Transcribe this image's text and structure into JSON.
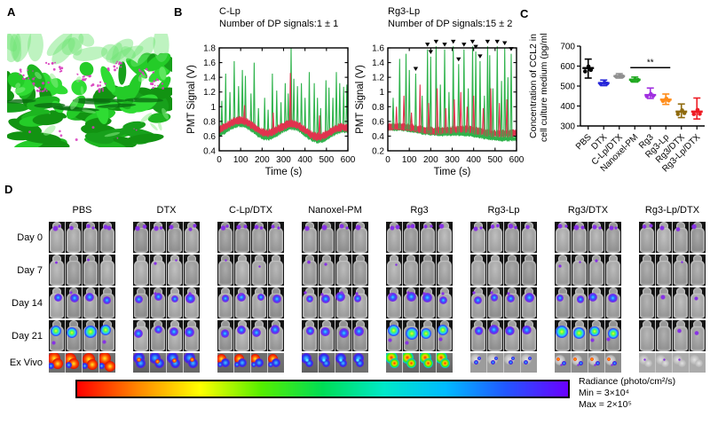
{
  "figure": {
    "panel_labels": {
      "a": "A",
      "b": "B",
      "c": "C",
      "d": "D"
    }
  },
  "chart_data": [
    {
      "id": "pmt-c-lp",
      "type": "line",
      "title": "C-Lp",
      "subtitle": "Number of DP signals:1 ± 1",
      "xlabel": "Time (s)",
      "ylabel": "PMT Signal (V)",
      "xlim": [
        0,
        600
      ],
      "xticks": [
        0,
        100,
        200,
        300,
        400,
        500,
        600
      ],
      "ylim": [
        0.4,
        1.8
      ],
      "yticks": [
        0.4,
        0.6,
        0.8,
        1,
        1.2,
        1.4,
        1.6,
        1.8
      ],
      "series": [
        {
          "name": "green-channel",
          "color": "#2eb34b",
          "baseline": {
            "start": 0.7,
            "end": 0.6,
            "wave": 0.08,
            "period": 240,
            "phase": 100,
            "thickness": 0.1
          },
          "spikes": [
            [
              12,
              1.08
            ],
            [
              30,
              1.45
            ],
            [
              50,
              1.2
            ],
            [
              70,
              1.62
            ],
            [
              90,
              1.28
            ],
            [
              108,
              1.5
            ],
            [
              122,
              1.42
            ],
            [
              148,
              1.18
            ],
            [
              163,
              1.6
            ],
            [
              183,
              0.98
            ],
            [
              212,
              1.12
            ],
            [
              228,
              0.96
            ],
            [
              248,
              1.45
            ],
            [
              268,
              1.22
            ],
            [
              288,
              1.06
            ],
            [
              308,
              1.32
            ],
            [
              322,
              1.18
            ],
            [
              335,
              1.8
            ],
            [
              348,
              1.38
            ],
            [
              365,
              1.28
            ],
            [
              383,
              1.32
            ],
            [
              400,
              1.12
            ],
            [
              420,
              1.47
            ],
            [
              443,
              1.32
            ],
            [
              458,
              1.12
            ],
            [
              473,
              0.98
            ],
            [
              498,
              1.36
            ],
            [
              512,
              1.26
            ],
            [
              530,
              1.12
            ],
            [
              546,
              1.47
            ],
            [
              562,
              1.32
            ],
            [
              580,
              1.27
            ],
            [
              595,
              1.3
            ]
          ]
        },
        {
          "name": "red-channel",
          "color": "#e1334e",
          "baseline": {
            "start": 0.76,
            "end": 0.64,
            "wave": 0.075,
            "period": 240,
            "phase": 100,
            "thickness": 0.13
          },
          "spikes": [
            [
              118,
              1.02
            ],
            [
              252,
              0.92
            ],
            [
              332,
              1.46
            ],
            [
              468,
              0.88
            ]
          ]
        }
      ],
      "dp_signal_markers": []
    },
    {
      "id": "pmt-rg3-lp",
      "type": "line",
      "title": "Rg3-Lp",
      "subtitle": "Number of DP signals:15 ± 2",
      "xlabel": "Time (s)",
      "ylabel": "PMT Signal (V)",
      "xlim": [
        0,
        600
      ],
      "xticks": [
        0,
        100,
        200,
        300,
        400,
        500,
        600
      ],
      "ylim": [
        0.2,
        1.6
      ],
      "yticks": [
        0.2,
        0.4,
        0.6,
        0.8,
        1,
        1.2,
        1.4,
        1.6
      ],
      "series": [
        {
          "name": "green-channel",
          "color": "#2eb34b",
          "baseline": {
            "start": 0.5,
            "end": 0.36,
            "wave": 0.015,
            "period": 300,
            "phase": 60,
            "thickness": 0.08
          },
          "spikes": [
            [
              25,
              0.92
            ],
            [
              55,
              1.45
            ],
            [
              85,
              1.52
            ],
            [
              100,
              1.3
            ],
            [
              130,
              1.25
            ],
            [
              160,
              0.95
            ],
            [
              185,
              1.58
            ],
            [
              200,
              1.48
            ],
            [
              225,
              1.62
            ],
            [
              245,
              1.1
            ],
            [
              265,
              1.58
            ],
            [
              285,
              1.0
            ],
            [
              305,
              1.62
            ],
            [
              330,
              1.38
            ],
            [
              355,
              1.58
            ],
            [
              375,
              1.05
            ],
            [
              395,
              1.62
            ],
            [
              410,
              1.55
            ],
            [
              430,
              1.42
            ],
            [
              450,
              0.95
            ],
            [
              465,
              1.62
            ],
            [
              475,
              1.5
            ],
            [
              490,
              1.05
            ],
            [
              510,
              1.62
            ],
            [
              530,
              1.15
            ],
            [
              545,
              1.6
            ],
            [
              560,
              1.2
            ],
            [
              575,
              1.52
            ]
          ]
        },
        {
          "name": "red-channel",
          "color": "#e1334e",
          "baseline": {
            "start": 0.52,
            "end": 0.44,
            "wave": 0.02,
            "period": 300,
            "phase": 60,
            "thickness": 0.12
          },
          "spikes": [
            [
              40,
              0.8
            ],
            [
              75,
              0.95
            ],
            [
              110,
              0.72
            ],
            [
              150,
              1.1
            ],
            [
              190,
              0.85
            ],
            [
              230,
              1.05
            ],
            [
              270,
              0.78
            ],
            [
              310,
              0.9
            ],
            [
              340,
              1.0
            ],
            [
              370,
              0.8
            ],
            [
              400,
              0.95
            ],
            [
              445,
              0.78
            ],
            [
              480,
              1.05
            ],
            [
              520,
              0.85
            ],
            [
              555,
              0.9
            ]
          ]
        }
      ],
      "dp_signal_markers": [
        [
          130,
          1.25
        ],
        [
          185,
          1.58
        ],
        [
          200,
          1.48
        ],
        [
          225,
          1.62
        ],
        [
          265,
          1.58
        ],
        [
          305,
          1.62
        ],
        [
          330,
          1.38
        ],
        [
          355,
          1.58
        ],
        [
          395,
          1.62
        ],
        [
          410,
          1.55
        ],
        [
          430,
          1.42
        ],
        [
          465,
          1.62
        ],
        [
          510,
          1.62
        ],
        [
          545,
          1.6
        ],
        [
          575,
          1.52
        ]
      ]
    },
    {
      "id": "ccl2",
      "type": "scatter",
      "ylabel_lines": [
        "Concentration of CCL2 in",
        "cell culture medium (pg/ml)"
      ],
      "ylim": [
        300,
        700
      ],
      "yticks": [
        300,
        400,
        500,
        600,
        700
      ],
      "categories": [
        "PBS",
        "DTX",
        "C-Lp/DTX",
        "Nanoxel-PM",
        "Rg3",
        "Rg3-Lp",
        "Rg3/DTX",
        "Rg3-Lp/DTX"
      ],
      "means": [
        590,
        515,
        550,
        532,
        455,
        432,
        372,
        372
      ],
      "err_low": [
        540,
        502,
        540,
        520,
        438,
        408,
        342,
        335
      ],
      "err_high": [
        635,
        530,
        562,
        545,
        490,
        460,
        410,
        440
      ],
      "colors": [
        "#000000",
        "#2626d9",
        "#8f8f8f",
        "#1fa81f",
        "#a02fe0",
        "#ff8c19",
        "#8f6b0f",
        "#ee1c24"
      ],
      "significance": {
        "label": "**",
        "from_index": 3,
        "to_index": 5,
        "y_value": 592
      }
    }
  ],
  "panel_a": {
    "description": "3D intravital two-photon render: green tumor vasculature surface with magenta liposome signals",
    "green_palette": [
      "#1db520",
      "#24cc28",
      "#17a01b",
      "#2fdc33",
      "#129312"
    ],
    "top_haze_color": "#6fe473",
    "crevice_color": "#0b6e12",
    "highlight_color": "#8ef08a",
    "magenta": "#d83bbd"
  },
  "panel_d": {
    "row_labels": [
      "Day 0",
      "Day 7",
      "Day 14",
      "Day 21",
      "Ex Vivo"
    ],
    "mice_per_group": 4,
    "groups": [
      {
        "name": "PBS",
        "day_levels": [
          2,
          1,
          2,
          3
        ],
        "exvivo": "hot-red"
      },
      {
        "name": "DTX",
        "day_levels": [
          2,
          1,
          2,
          2
        ],
        "exvivo": "blue-red"
      },
      {
        "name": "C-Lp/DTX",
        "day_levels": [
          2,
          0,
          2,
          2
        ],
        "exvivo": "red-blue"
      },
      {
        "name": "Nanoxel-PM",
        "day_levels": [
          2,
          1,
          2,
          2
        ],
        "exvivo": "blue"
      },
      {
        "name": "Rg3",
        "day_levels": [
          2,
          1,
          2,
          3
        ],
        "exvivo": "rainbow"
      },
      {
        "name": "Rg3-Lp",
        "day_levels": [
          2,
          0,
          2,
          2
        ],
        "exvivo": "pale-blue"
      },
      {
        "name": "Rg3/DTX",
        "day_levels": [
          2,
          1,
          2,
          3
        ],
        "exvivo": "pale-scatter"
      },
      {
        "name": "Rg3-Lp/DTX",
        "day_levels": [
          2,
          0,
          1,
          1
        ],
        "exvivo": "pale-minimal"
      }
    ],
    "colorbar": {
      "gradient_stops": [
        "#ff0000",
        "#ff8800",
        "#ffff00",
        "#55ee00",
        "#00dd55",
        "#00e8c8",
        "#00bbff",
        "#2255ff",
        "#6a00ff"
      ],
      "legend_lines": [
        "Radiance (photo/cm²/s)",
        "Min = 3×10⁴",
        "Max = 2×10⁵"
      ]
    }
  }
}
